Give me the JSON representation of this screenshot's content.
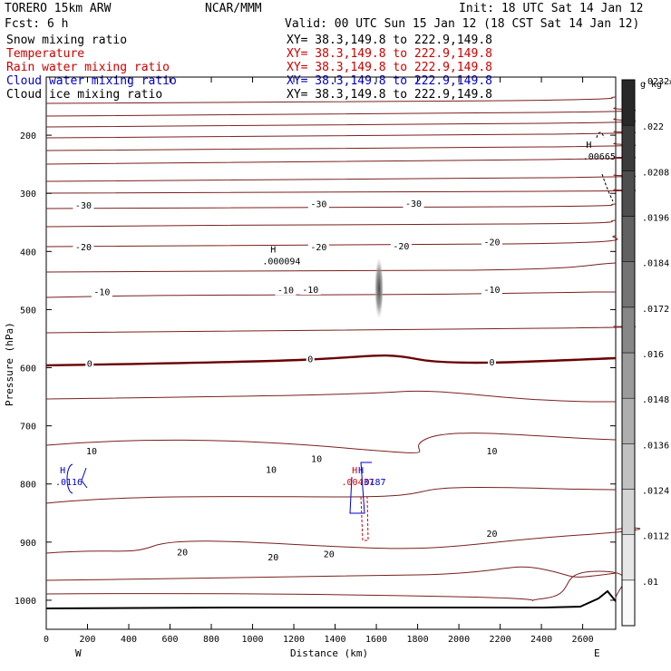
{
  "header": {
    "model": "TORERO  15km ARW",
    "center": "NCAR/MMM",
    "init": "Init: 18 UTC Sat 14 Jan 12",
    "fcst": "Fcst:    6 h",
    "valid": "Valid: 00 UTC Sun 15 Jan 12 (18 CST Sat 14 Jan 12)"
  },
  "fields": [
    {
      "name": "Snow mixing ratio",
      "xy": "XY=  38.3,149.8 to 222.9,149.8",
      "color": "#000000"
    },
    {
      "name": "Temperature",
      "xy": "XY=  38.3,149.8 to 222.9,149.8",
      "color": "#cc0000"
    },
    {
      "name": "Rain water mixing ratio",
      "xy": "XY=  38.3,149.8 to 222.9,149.8",
      "color": "#cc0000"
    },
    {
      "name": "Cloud water mixing ratio",
      "xy": "XY=  38.3,149.8 to 222.9,149.8",
      "color": "#0000cc"
    },
    {
      "name": "Cloud ice mixing ratio",
      "xy": "XY=  38.3,149.8 to 222.9,149.8",
      "color": "#000000"
    }
  ],
  "chart_data": {
    "type": "cross-section contour",
    "xlabel": "Distance (km)",
    "ylabel": "Pressure (hPa)",
    "xlim": [
      0,
      2760
    ],
    "ylim": [
      1050,
      100
    ],
    "x_ticks": [
      0,
      200,
      400,
      600,
      800,
      1000,
      1200,
      1400,
      1600,
      1800,
      2000,
      2200,
      2400,
      2600
    ],
    "y_ticks": [
      200,
      300,
      400,
      500,
      600,
      700,
      800,
      900,
      1000
    ],
    "endpoint_labels": [
      "W",
      "E"
    ],
    "colorbar": {
      "unit": "g kg⁻¹",
      "levels": [
        ".01",
        ".0112",
        ".0124",
        ".0136",
        ".0148",
        ".016",
        ".0172",
        ".0184",
        ".0196",
        ".0208",
        ".022",
        ".0232"
      ]
    },
    "temperature_labels": [
      {
        "text": "-30",
        "x": 180,
        "p": 320
      },
      {
        "text": "-30",
        "x": 1320,
        "p": 318
      },
      {
        "text": "-30",
        "x": 1780,
        "p": 317
      },
      {
        "text": "-20",
        "x": 180,
        "p": 392
      },
      {
        "text": "-20",
        "x": 1320,
        "p": 392
      },
      {
        "text": "-20",
        "x": 1720,
        "p": 390
      },
      {
        "text": "-20",
        "x": 2160,
        "p": 383
      },
      {
        "text": "-10",
        "x": 270,
        "p": 469
      },
      {
        "text": "-10",
        "x": 1160,
        "p": 466
      },
      {
        "text": "-10",
        "x": 1280,
        "p": 465
      },
      {
        "text": "-10",
        "x": 2160,
        "p": 465
      },
      {
        "text": "0",
        "x": 210,
        "p": 592
      },
      {
        "text": "0",
        "x": 1280,
        "p": 584
      },
      {
        "text": "0",
        "x": 2160,
        "p": 590
      },
      {
        "text": "10",
        "x": 220,
        "p": 743
      },
      {
        "text": "10",
        "x": 1090,
        "p": 775
      },
      {
        "text": "10",
        "x": 1310,
        "p": 756
      },
      {
        "text": "10",
        "x": 2160,
        "p": 743
      },
      {
        "text": "20",
        "x": 660,
        "p": 917
      },
      {
        "text": "20",
        "x": 1100,
        "p": 925
      },
      {
        "text": "20",
        "x": 1370,
        "p": 920
      },
      {
        "text": "20",
        "x": 2160,
        "p": 885
      }
    ],
    "extrema": [
      {
        "text": "H",
        "x": 1100,
        "p": 402,
        "color": "#000000"
      },
      {
        "text": ".000094",
        "x": 1140,
        "p": 422,
        "color": "#000000"
      },
      {
        "text": "H",
        "x": 2630,
        "p": 222,
        "color": "#000000"
      },
      {
        "text": ".00665",
        "x": 2680,
        "p": 242,
        "color": "#000000"
      },
      {
        "text": "H",
        "x": 80,
        "p": 782,
        "color": "#0000cc"
      },
      {
        "text": ".0116",
        "x": 110,
        "p": 802,
        "color": "#0000cc"
      },
      {
        "text": "H",
        "x": 1495,
        "p": 782,
        "color": "#cc0000"
      },
      {
        "text": "H",
        "x": 1525,
        "p": 782,
        "color": "#0000cc"
      },
      {
        "text": ".00437",
        "x": 1510,
        "p": 802,
        "color": "#cc0000"
      },
      {
        "text": ".0187",
        "x": 1580,
        "p": 802,
        "color": "#0000cc"
      }
    ]
  }
}
